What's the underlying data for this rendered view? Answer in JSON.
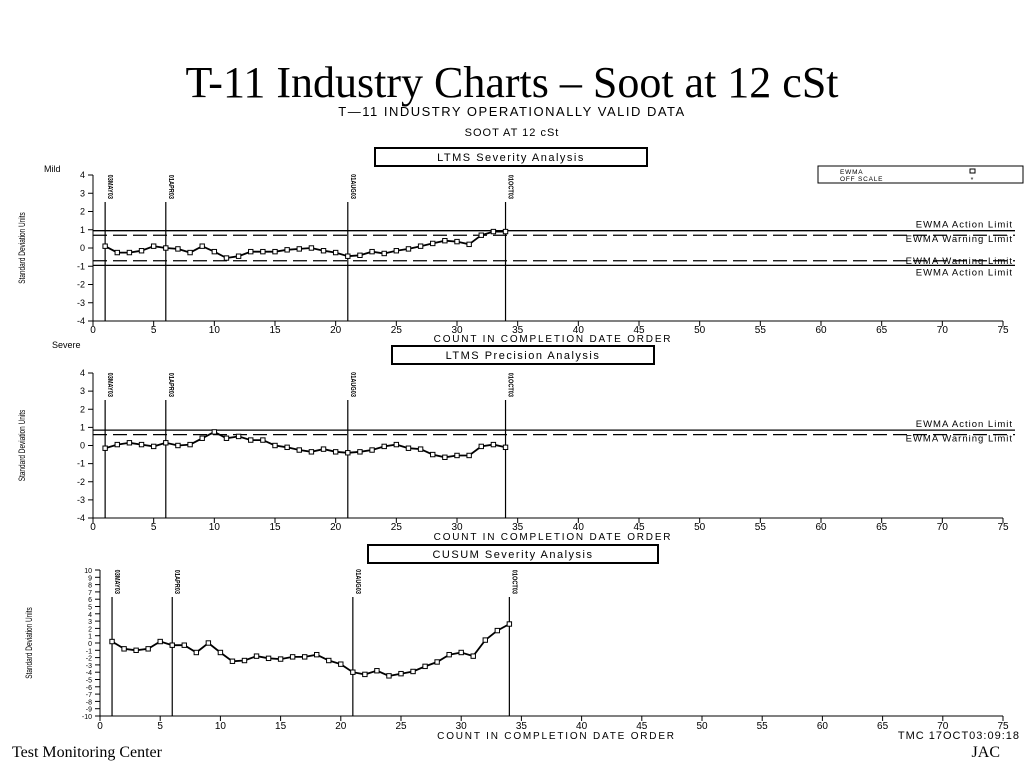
{
  "slide": {
    "title": "T-11 Industry Charts – Soot at 12 cSt",
    "footer_left": "Test Monitoring Center",
    "footer_right": "JAC"
  },
  "figure": {
    "title": "T—11 INDUSTRY OPERATIONALLY VALID DATA",
    "subtitle": "SOOT AT 12 cSt",
    "timestamp": "TMC  17OCT03:09:18"
  },
  "chart_data": [
    {
      "type": "line",
      "title": "LTMS Severity Analysis",
      "xlabel": "COUNT IN COMPLETION DATE ORDER",
      "ylabel": "Standard Deviation Units",
      "xlim": [
        0,
        75
      ],
      "ylim": [
        -4,
        4
      ],
      "xticks": [
        0,
        5,
        10,
        15,
        20,
        25,
        30,
        35,
        40,
        45,
        50,
        55,
        60,
        65,
        70,
        75
      ],
      "yticks": [
        4,
        3,
        2,
        1,
        0,
        -1,
        -2,
        -3,
        -4
      ],
      "top_label": "Mild",
      "bottom_label": "Severe",
      "legend": [
        {
          "label": "EWMA",
          "marker": "square"
        },
        {
          "label": "OFF SCALE",
          "marker": "star"
        }
      ],
      "legend_position": "top-right",
      "limit_lines": [
        {
          "label": "EWMA Action Limit",
          "y": 0.95,
          "style": "solid"
        },
        {
          "label": "EWMA Warning Limit",
          "y": 0.7,
          "style": "dashed"
        },
        {
          "label": "EWMA Warning Limit",
          "y": -0.7,
          "style": "dashed"
        },
        {
          "label": "EWMA Action Limit",
          "y": -0.95,
          "style": "solid"
        }
      ],
      "markers": [
        {
          "x": 1,
          "label": "03MAY03"
        },
        {
          "x": 6,
          "label": "01APR03"
        },
        {
          "x": 21,
          "label": "01AUG03"
        },
        {
          "x": 34,
          "label": "01OCT03"
        }
      ],
      "series": [
        {
          "x": [
            1,
            2,
            3,
            4,
            5,
            6,
            7,
            8,
            9,
            10,
            11,
            12,
            13,
            14,
            15,
            16,
            17,
            18,
            19,
            20,
            21,
            22,
            23,
            24,
            25,
            26,
            27,
            28,
            29,
            30,
            31,
            32,
            33,
            34
          ],
          "y": [
            0.1,
            -0.25,
            -0.25,
            -0.15,
            0.1,
            0.0,
            -0.05,
            -0.25,
            0.1,
            -0.2,
            -0.55,
            -0.45,
            -0.2,
            -0.2,
            -0.2,
            -0.1,
            -0.05,
            0.0,
            -0.15,
            -0.25,
            -0.45,
            -0.4,
            -0.2,
            -0.3,
            -0.15,
            -0.05,
            0.1,
            0.25,
            0.4,
            0.35,
            0.2,
            0.7,
            0.9,
            0.9
          ]
        }
      ]
    },
    {
      "type": "line",
      "title": "LTMS Precision Analysis",
      "xlabel": "COUNT IN COMPLETION DATE ORDER",
      "ylabel": "Standard Deviation Units",
      "xlim": [
        0,
        75
      ],
      "ylim": [
        -4,
        4
      ],
      "xticks": [
        0,
        5,
        10,
        15,
        20,
        25,
        30,
        35,
        40,
        45,
        50,
        55,
        60,
        65,
        70,
        75
      ],
      "yticks": [
        4,
        3,
        2,
        1,
        0,
        -1,
        -2,
        -3,
        -4
      ],
      "limit_lines": [
        {
          "label": "EWMA Action Limit",
          "y": 0.85,
          "style": "solid"
        },
        {
          "label": "EWMA Warning Limit",
          "y": 0.6,
          "style": "dashed"
        }
      ],
      "markers": [
        {
          "x": 1,
          "label": "03MAY03"
        },
        {
          "x": 6,
          "label": "01APR03"
        },
        {
          "x": 21,
          "label": "01AUG03"
        },
        {
          "x": 34,
          "label": "01OCT03"
        }
      ],
      "series": [
        {
          "x": [
            1,
            2,
            3,
            4,
            5,
            6,
            7,
            8,
            9,
            10,
            11,
            12,
            13,
            14,
            15,
            16,
            17,
            18,
            19,
            20,
            21,
            22,
            23,
            24,
            25,
            26,
            27,
            28,
            29,
            30,
            31,
            32,
            33,
            34
          ],
          "y": [
            -0.15,
            0.05,
            0.15,
            0.05,
            -0.05,
            0.15,
            0.0,
            0.05,
            0.4,
            0.75,
            0.4,
            0.5,
            0.3,
            0.3,
            0.0,
            -0.1,
            -0.25,
            -0.35,
            -0.2,
            -0.35,
            -0.4,
            -0.35,
            -0.25,
            -0.05,
            0.05,
            -0.15,
            -0.2,
            -0.5,
            -0.65,
            -0.55,
            -0.55,
            -0.05,
            0.05,
            -0.1
          ]
        }
      ]
    },
    {
      "type": "line",
      "title": "CUSUM Severity Analysis",
      "xlabel": "COUNT IN COMPLETION DATE ORDER",
      "ylabel": "Standard Deviation Units",
      "xlim": [
        0,
        75
      ],
      "ylim": [
        -10,
        10
      ],
      "xticks": [
        0,
        5,
        10,
        15,
        20,
        25,
        30,
        35,
        40,
        45,
        50,
        55,
        60,
        65,
        70,
        75
      ],
      "yticks": [
        "10",
        "9",
        "8",
        "7",
        "6",
        "5",
        "4",
        "3",
        "2",
        "1",
        "0",
        "-1",
        "-2",
        "-3",
        "-4",
        "-5",
        "-6",
        "-7",
        "-8",
        "-9",
        "-10"
      ],
      "markers": [
        {
          "x": 1,
          "label": "03MAY03"
        },
        {
          "x": 6,
          "label": "01APR03"
        },
        {
          "x": 21,
          "label": "01AUG03"
        },
        {
          "x": 34,
          "label": "01OCT03"
        }
      ],
      "series": [
        {
          "x": [
            1,
            2,
            3,
            4,
            5,
            6,
            7,
            8,
            9,
            10,
            11,
            12,
            13,
            14,
            15,
            16,
            17,
            18,
            19,
            20,
            21,
            22,
            23,
            24,
            25,
            26,
            27,
            28,
            29,
            30,
            31,
            32,
            33,
            34
          ],
          "y": [
            0.2,
            -0.8,
            -1.0,
            -0.8,
            0.2,
            -0.3,
            -0.3,
            -1.3,
            0.0,
            -1.3,
            -2.5,
            -2.4,
            -1.8,
            -2.1,
            -2.2,
            -1.9,
            -1.9,
            -1.6,
            -2.4,
            -2.9,
            -4.0,
            -4.3,
            -3.8,
            -4.5,
            -4.2,
            -3.9,
            -3.2,
            -2.6,
            -1.6,
            -1.3,
            -1.8,
            0.4,
            1.7,
            2.6
          ]
        }
      ]
    }
  ]
}
